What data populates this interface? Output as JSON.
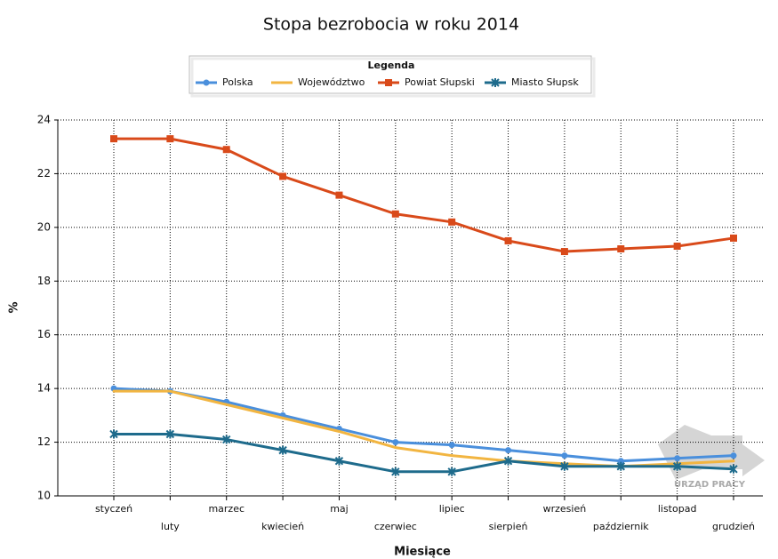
{
  "chart_data": {
    "type": "line",
    "title": "Stopa bezrobocia w roku 2014",
    "legend_title": "Legenda",
    "y_label": "%",
    "x_label": "Miesiące",
    "watermark": "URZĄD PRACY",
    "categories": [
      "styczeń",
      "luty",
      "marzec",
      "kwiecień",
      "maj",
      "czerwiec",
      "lipiec",
      "sierpień",
      "wrzesień",
      "październik",
      "listopad",
      "grudzień"
    ],
    "series": [
      {
        "name": "Polska",
        "color": "#4a8fdc",
        "marker": "circle",
        "values": [
          14.0,
          13.9,
          13.5,
          13.0,
          12.5,
          12.0,
          11.9,
          11.7,
          11.5,
          11.3,
          11.4,
          11.5
        ]
      },
      {
        "name": "Województwo",
        "color": "#f2b541",
        "marker": "none",
        "values": [
          13.9,
          13.9,
          13.4,
          12.9,
          12.4,
          11.8,
          11.5,
          11.3,
          11.2,
          11.1,
          11.2,
          11.3
        ]
      },
      {
        "name": "Powiat Słupski",
        "color": "#d94a1a",
        "marker": "square",
        "values": [
          23.3,
          23.3,
          22.9,
          21.9,
          21.2,
          20.5,
          20.2,
          19.5,
          19.1,
          19.2,
          19.3,
          19.6
        ]
      },
      {
        "name": "Miasto Słupsk",
        "color": "#1e6b8c",
        "marker": "cross",
        "values": [
          12.3,
          12.3,
          12.1,
          11.7,
          11.3,
          10.9,
          10.9,
          11.3,
          11.1,
          11.1,
          11.1,
          11.0
        ]
      }
    ],
    "ylim": [
      10,
      24
    ],
    "yticks": [
      10,
      12,
      14,
      16,
      18,
      20,
      22,
      24
    ],
    "grid": true
  }
}
